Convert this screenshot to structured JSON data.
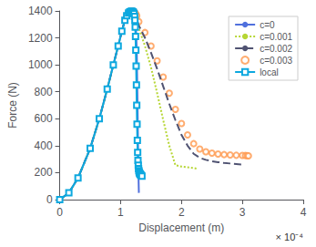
{
  "chart_data": {
    "type": "line",
    "x_label": "Displacement (m)",
    "y_label": "Force (N)",
    "annotation": "× 10⁻⁴",
    "xlim": [
      0,
      0.0004
    ],
    "ylim": [
      0,
      1400
    ],
    "xticks": [
      0,
      {
        "value": 0.0001,
        "label": "1"
      },
      {
        "value": 0.0002,
        "label": "2"
      },
      {
        "value": 0.0003,
        "label": "3"
      },
      {
        "value": 0.0004,
        "label": "4"
      }
    ],
    "yticks": [
      0,
      200,
      400,
      600,
      800,
      1000,
      1200,
      1400
    ],
    "grid": false,
    "legend": "upper right",
    "series": [
      {
        "name": "c=0",
        "type": "line",
        "line_style": "solid",
        "x": [
          0,
          1.5e-05,
          3e-05,
          5e-05,
          6.5e-05,
          7.8e-05,
          8.8e-05,
          9.6e-05,
          0.000102,
          0.000107,
          0.00011,
          0.000113,
          0.000115,
          0.000117,
          0.000119,
          0.000121,
          0.0001225,
          0.000124,
          0.0001255,
          0.0001265,
          0.0001275,
          0.0001285,
          0.000129,
          0.0001295,
          0.00013
        ],
        "values": [
          0,
          50,
          160,
          380,
          600,
          820,
          1000,
          1140,
          1250,
          1330,
          1365,
          1385,
          1393,
          1397,
          1398,
          1395,
          1385,
          1340,
          1240,
          1100,
          800,
          450,
          280,
          150,
          50
        ]
      },
      {
        "name": "c=0.001",
        "type": "line",
        "line_style": "dotted",
        "x": [
          0,
          1.5e-05,
          3e-05,
          5e-05,
          6.5e-05,
          7.8e-05,
          8.8e-05,
          9.6e-05,
          0.000102,
          0.000107,
          0.00011,
          0.000113,
          0.000115,
          0.000117,
          0.000119,
          0.000121,
          0.0001225,
          0.000124,
          0.0001255,
          0.0001265,
          0.00013,
          0.00014,
          0.00015,
          0.00016,
          0.00017,
          0.00018,
          0.00019,
          0.0002,
          0.00021,
          0.00022,
          0.000225
        ],
        "values": [
          0,
          50,
          160,
          380,
          600,
          820,
          1000,
          1140,
          1250,
          1330,
          1365,
          1385,
          1393,
          1397,
          1398,
          1395,
          1390,
          1375,
          1355,
          1330,
          1270,
          1140,
          980,
          790,
          590,
          400,
          255,
          245,
          240,
          235,
          230
        ]
      },
      {
        "name": "c=0.002",
        "type": "line",
        "line_style": "dashed",
        "x": [
          0,
          1.5e-05,
          3e-05,
          5e-05,
          6.5e-05,
          7.8e-05,
          8.8e-05,
          9.6e-05,
          0.000102,
          0.000107,
          0.00011,
          0.000113,
          0.000115,
          0.000117,
          0.000119,
          0.000121,
          0.0001225,
          0.000124,
          0.0001255,
          0.0001265,
          0.00013,
          0.00014,
          0.00015,
          0.00016,
          0.00017,
          0.00018,
          0.00019,
          0.0002,
          0.00021,
          0.00022,
          0.00023,
          0.00024,
          0.00025,
          0.00026,
          0.00027,
          0.00028,
          0.00029,
          0.0003
        ],
        "values": [
          0,
          50,
          160,
          380,
          600,
          820,
          1000,
          1140,
          1250,
          1330,
          1365,
          1385,
          1393,
          1397,
          1398,
          1395,
          1390,
          1375,
          1360,
          1340,
          1290,
          1200,
          1090,
          970,
          840,
          710,
          590,
          480,
          400,
          340,
          310,
          295,
          285,
          278,
          272,
          268,
          264,
          260
        ]
      },
      {
        "name": "c=0.003",
        "type": "scatter",
        "marker": "circle",
        "x": [
          0.00011,
          0.000113,
          0.000115,
          0.000117,
          0.000119,
          0.000121,
          0.0001225,
          0.000124,
          0.0001255,
          0.0001265,
          0.00013,
          0.00014,
          0.00015,
          0.00016,
          0.00017,
          0.00018,
          0.00019,
          0.0002,
          0.00021,
          0.00022,
          0.00023,
          0.00024,
          0.00025,
          0.00026,
          0.00027,
          0.00028,
          0.00029,
          0.0003,
          0.000305,
          0.000308,
          0.00031
        ],
        "values": [
          1365,
          1385,
          1393,
          1397,
          1398,
          1396,
          1393,
          1385,
          1375,
          1362,
          1320,
          1240,
          1140,
          1030,
          910,
          790,
          670,
          565,
          480,
          415,
          375,
          355,
          345,
          338,
          334,
          331,
          329,
          328,
          327,
          326,
          325
        ]
      },
      {
        "name": "local",
        "type": "line",
        "line_style": "solid",
        "marker": "square",
        "x": [
          0,
          1.5e-05,
          3e-05,
          5e-05,
          6.5e-05,
          7.8e-05,
          8.8e-05,
          9.6e-05,
          0.000102,
          0.000107,
          0.00011,
          0.000113,
          0.000115,
          0.000117,
          0.0001185,
          0.00012,
          0.000121,
          0.000122,
          0.000123,
          0.0001235,
          0.000124,
          0.0001245,
          0.000125,
          0.0001255,
          0.000126,
          0.0001265,
          0.000127,
          0.0001275,
          0.000128,
          0.0001285,
          0.000129,
          0.0001295,
          0.00013,
          0.0001305,
          0.000131,
          0.0001315,
          0.000132,
          0.0001325,
          0.000133,
          0.000134,
          0.000135
        ],
        "values": [
          0,
          50,
          160,
          380,
          600,
          820,
          1000,
          1140,
          1250,
          1330,
          1365,
          1385,
          1393,
          1397,
          1398,
          1394,
          1390,
          1380,
          1360,
          1330,
          1280,
          1210,
          1110,
          990,
          850,
          700,
          560,
          440,
          350,
          290,
          255,
          230,
          215,
          205,
          198,
          193,
          189,
          186,
          184,
          180,
          175
        ]
      }
    ]
  }
}
